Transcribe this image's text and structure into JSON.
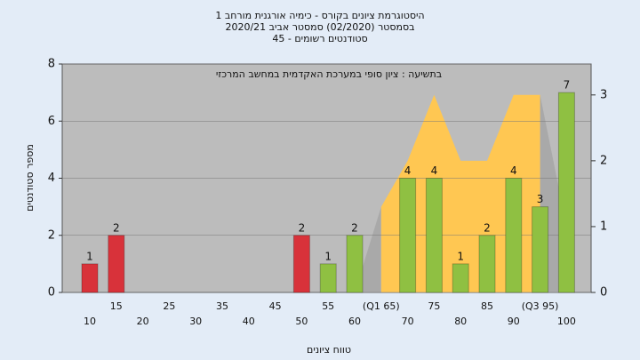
{
  "chart_data": {
    "type": "bar",
    "title": [
      "היסטוגרמת ציונים בקורס - כימיה אורגנית מורחב 1",
      "בסמסטר  (02/2020)  סמסטר אביב 2020/21",
      "סטודנטים רשומים - 45"
    ],
    "annotation": "בתשיעה : ציון סופי במערכת האקדמית במחשב המרכזי",
    "x_label": "טווח ציונים",
    "y_label": "מספר סטודנטים",
    "categories": [
      "10",
      "15",
      "20",
      "25",
      "30",
      "35",
      "40",
      "45",
      "50",
      "55",
      "60",
      "(Q1 65)",
      "70",
      "75",
      "80",
      "85",
      "90",
      "(Q3 95)",
      "100"
    ],
    "values": [
      1,
      2,
      0,
      0,
      0,
      0,
      0,
      0,
      2,
      1,
      2,
      0,
      4,
      4,
      1,
      2,
      4,
      3,
      7
    ],
    "colors": [
      "#d8323a",
      "#d8323a",
      "#d8323a",
      "#d8323a",
      "#d8323a",
      "#d8323a",
      "#d8323a",
      "#d8323a",
      "#d8323a",
      "#8fc042",
      "#8fc042",
      "#8fc042",
      "#8fc042",
      "#8fc042",
      "#8fc042",
      "#8fc042",
      "#8fc042",
      "#8fc042",
      "#8fc042"
    ],
    "areas": [
      {
        "color": "#a9a9a9",
        "axis": "y2",
        "values": [
          null,
          null,
          null,
          null,
          null,
          null,
          null,
          null,
          null,
          null,
          0,
          1.3,
          null,
          null,
          null,
          null,
          null,
          3,
          1
        ]
      },
      {
        "color": "#ffc752",
        "axis": "y2",
        "values": [
          null,
          null,
          null,
          null,
          null,
          null,
          null,
          null,
          null,
          null,
          null,
          1.3,
          2,
          3,
          2,
          2,
          3,
          3,
          null
        ]
      }
    ],
    "ylim": [
      0,
      8
    ],
    "yticks": [
      0,
      2,
      4,
      6,
      8
    ],
    "y2lim": [
      0,
      3.47
    ],
    "y2ticks": [
      0,
      1,
      2,
      3
    ],
    "grid": true
  }
}
